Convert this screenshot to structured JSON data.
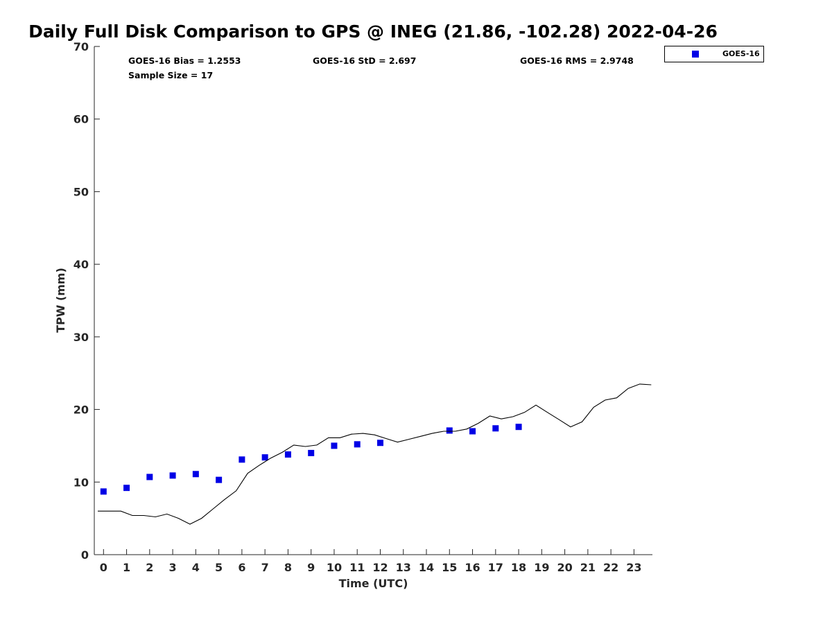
{
  "chart_data": {
    "type": "scatter",
    "title": "Daily Full Disk Comparison to GPS @ INEG (21.86, -102.28) 2022-04-26",
    "xlabel": "Time (UTC)",
    "ylabel": "TPW (mm)",
    "xlim": [
      -0.4,
      23.8
    ],
    "ylim": [
      0,
      70
    ],
    "xticks": [
      0,
      1,
      2,
      3,
      4,
      5,
      6,
      7,
      8,
      9,
      10,
      11,
      12,
      13,
      14,
      15,
      16,
      17,
      18,
      19,
      20,
      21,
      22,
      23
    ],
    "yticks": [
      0,
      10,
      20,
      30,
      40,
      50,
      60,
      70
    ],
    "grid": false,
    "legend": {
      "placement": "top-right-outside",
      "entries": [
        "GOES-16"
      ]
    },
    "stats": {
      "bias": "GOES-16 Bias = 1.2553",
      "std": "GOES-16 StD = 2.697",
      "rms": "GOES-16 RMS = 2.9748",
      "sample": "Sample Size = 17"
    },
    "series": [
      {
        "name": "GOES-16",
        "kind": "scatter",
        "marker": "square",
        "color": "#0000e6",
        "x": [
          0,
          1,
          2,
          3,
          4,
          5,
          6,
          7,
          8,
          9,
          10,
          11,
          12,
          15,
          16,
          17,
          18
        ],
        "y": [
          8.7,
          9.2,
          10.7,
          10.9,
          11.1,
          10.3,
          13.1,
          13.4,
          13.8,
          14.0,
          15.0,
          15.2,
          15.4,
          17.1,
          17.0,
          17.4,
          17.6
        ]
      },
      {
        "kind": "line",
        "color": "#000000",
        "x": [
          -0.25,
          0.25,
          0.75,
          1.25,
          1.75,
          2.25,
          2.75,
          3.25,
          3.75,
          4.25,
          4.75,
          5.25,
          5.75,
          6.25,
          6.75,
          7.25,
          7.75,
          8.25,
          8.75,
          9.25,
          9.75,
          10.25,
          10.75,
          11.25,
          11.75,
          12.25,
          12.75,
          13.25,
          13.75,
          14.25,
          14.75,
          15.25,
          15.75,
          16.25,
          16.75,
          17.25,
          17.75,
          18.25,
          18.75,
          19.25,
          19.75,
          20.25,
          20.75,
          21.25,
          21.75,
          22.25,
          22.75,
          23.25,
          23.75
        ],
        "y": [
          6.0,
          6.0,
          6.0,
          5.4,
          5.4,
          5.2,
          5.6,
          5.0,
          4.2,
          5.0,
          6.3,
          7.6,
          8.8,
          11.2,
          12.3,
          13.3,
          14.1,
          15.1,
          14.9,
          15.1,
          16.1,
          16.1,
          16.6,
          16.7,
          16.5,
          16.0,
          15.5,
          15.9,
          16.3,
          16.7,
          17.0,
          17.0,
          17.3,
          18.1,
          19.1,
          18.7,
          19.0,
          19.6,
          20.6,
          19.6,
          18.6,
          17.6,
          18.3,
          20.3,
          21.3,
          21.6,
          22.9,
          23.5,
          23.4
        ]
      }
    ]
  }
}
